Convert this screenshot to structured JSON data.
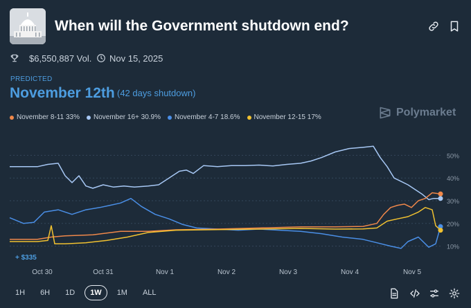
{
  "header": {
    "title": "When will the Government shutdown end?",
    "volume": "$6,550,887 Vol.",
    "date": "Nov 15, 2025"
  },
  "prediction": {
    "label": "PREDICTED",
    "value": "November 12th",
    "sub": "(42 days shutdown)"
  },
  "brand": "Polymarket",
  "legend": [
    {
      "label": "November 8-11 33%",
      "color": "#f0884a"
    },
    {
      "label": "November 16+ 30.9%",
      "color": "#a7c8f5"
    },
    {
      "label": "November 4-7 18.6%",
      "color": "#4a8fe7"
    },
    {
      "label": "November 12-15 17%",
      "color": "#f2c230"
    }
  ],
  "annotation": "+ $335",
  "ranges": [
    "1H",
    "6H",
    "1D",
    "1W",
    "1M",
    "ALL"
  ],
  "active_range": "1W",
  "chart_data": {
    "type": "line",
    "x_ticks": [
      "Oct 30",
      "Oct 31",
      "Nov 1",
      "Nov 2",
      "Nov 3",
      "Nov 4",
      "Nov 5"
    ],
    "y_ticks": [
      "50%",
      "40%",
      "30%",
      "20%",
      "10%"
    ],
    "ylim": [
      5,
      55
    ],
    "xlim": [
      0,
      622
    ],
    "grid": true,
    "series": [
      {
        "name": "November 16+",
        "color": "#a7c8f5",
        "points": [
          [
            0,
            45
          ],
          [
            40,
            45
          ],
          [
            55,
            46
          ],
          [
            70,
            46.5
          ],
          [
            80,
            41
          ],
          [
            90,
            38
          ],
          [
            100,
            41
          ],
          [
            110,
            36.5
          ],
          [
            120,
            35.5
          ],
          [
            135,
            37
          ],
          [
            150,
            36
          ],
          [
            165,
            36.5
          ],
          [
            180,
            36
          ],
          [
            200,
            36.5
          ],
          [
            215,
            37
          ],
          [
            230,
            40
          ],
          [
            245,
            43
          ],
          [
            255,
            43.5
          ],
          [
            265,
            42
          ],
          [
            280,
            45.5
          ],
          [
            300,
            45
          ],
          [
            320,
            45.5
          ],
          [
            340,
            45.5
          ],
          [
            360,
            45.7
          ],
          [
            380,
            45.3
          ],
          [
            400,
            46
          ],
          [
            420,
            46.5
          ],
          [
            435,
            47.5
          ],
          [
            450,
            49
          ],
          [
            470,
            51.5
          ],
          [
            490,
            53
          ],
          [
            510,
            53.5
          ],
          [
            525,
            54
          ],
          [
            535,
            49
          ],
          [
            545,
            45
          ],
          [
            555,
            40
          ],
          [
            565,
            38.5
          ],
          [
            575,
            37
          ],
          [
            585,
            35
          ],
          [
            595,
            33
          ],
          [
            605,
            30.5
          ],
          [
            612,
            31
          ],
          [
            622,
            31
          ]
        ]
      },
      {
        "name": "November 4-7",
        "color": "#4a8fe7",
        "points": [
          [
            0,
            22.5
          ],
          [
            20,
            20
          ],
          [
            35,
            20.5
          ],
          [
            50,
            25
          ],
          [
            70,
            26
          ],
          [
            90,
            24
          ],
          [
            110,
            26
          ],
          [
            130,
            27
          ],
          [
            145,
            28
          ],
          [
            160,
            29
          ],
          [
            175,
            31
          ],
          [
            190,
            27.5
          ],
          [
            210,
            24
          ],
          [
            230,
            22
          ],
          [
            250,
            19.5
          ],
          [
            270,
            18
          ],
          [
            300,
            17.5
          ],
          [
            330,
            17
          ],
          [
            360,
            17.5
          ],
          [
            390,
            17
          ],
          [
            420,
            16.5
          ],
          [
            450,
            15.5
          ],
          [
            480,
            14
          ],
          [
            510,
            13
          ],
          [
            530,
            11.5
          ],
          [
            550,
            10
          ],
          [
            565,
            9
          ],
          [
            575,
            12
          ],
          [
            590,
            14
          ],
          [
            605,
            9.5
          ],
          [
            615,
            11
          ],
          [
            622,
            18.6
          ]
        ]
      },
      {
        "name": "November 8-11",
        "color": "#f0884a",
        "points": [
          [
            0,
            13
          ],
          [
            40,
            13
          ],
          [
            60,
            14
          ],
          [
            80,
            14.5
          ],
          [
            120,
            15
          ],
          [
            160,
            16.5
          ],
          [
            200,
            16.5
          ],
          [
            240,
            17.2
          ],
          [
            300,
            17.5
          ],
          [
            360,
            18
          ],
          [
            420,
            18.5
          ],
          [
            470,
            18.5
          ],
          [
            510,
            18.7
          ],
          [
            530,
            20
          ],
          [
            540,
            24
          ],
          [
            550,
            27
          ],
          [
            560,
            28
          ],
          [
            570,
            28.5
          ],
          [
            580,
            27
          ],
          [
            590,
            30
          ],
          [
            600,
            31
          ],
          [
            610,
            33.5
          ],
          [
            622,
            33
          ]
        ]
      },
      {
        "name": "November 12-15",
        "color": "#f2c230",
        "points": [
          [
            0,
            12
          ],
          [
            40,
            12
          ],
          [
            55,
            12.5
          ],
          [
            60,
            19
          ],
          [
            65,
            11
          ],
          [
            80,
            11
          ],
          [
            110,
            11.5
          ],
          [
            140,
            12.5
          ],
          [
            170,
            14
          ],
          [
            200,
            16
          ],
          [
            240,
            17
          ],
          [
            300,
            17.3
          ],
          [
            360,
            17.5
          ],
          [
            420,
            17.8
          ],
          [
            470,
            17.5
          ],
          [
            510,
            17.6
          ],
          [
            530,
            18
          ],
          [
            545,
            21
          ],
          [
            560,
            22
          ],
          [
            575,
            23
          ],
          [
            590,
            25
          ],
          [
            600,
            27
          ],
          [
            610,
            26
          ],
          [
            615,
            19
          ],
          [
            622,
            17
          ]
        ]
      }
    ]
  }
}
